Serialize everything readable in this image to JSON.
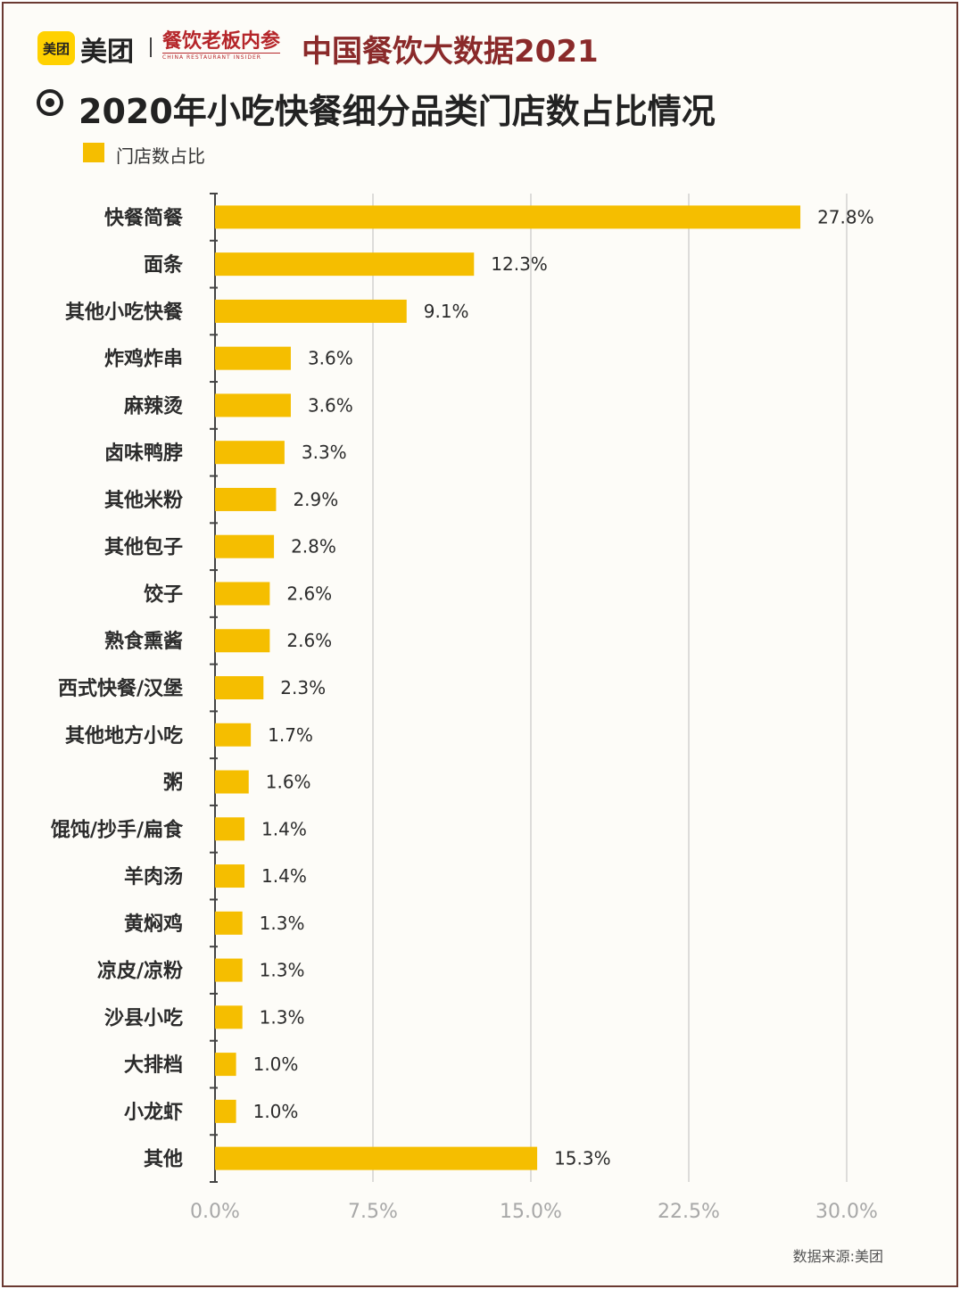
{
  "brand": {
    "logo_text": "美团",
    "name": "美团"
  },
  "partner": {
    "name": "餐饮老板内参",
    "en": "CHINA RESTAURANT INSIDER"
  },
  "headline": "中国餐饮大数据2021",
  "title": "2020年小吃快餐细分品类门店数占比情况",
  "legend": {
    "label": "门店数占比"
  },
  "source": "数据来源:美团",
  "colors": {
    "bar": "#f5be00",
    "grid": "#bdbdbd",
    "axis": "#444444",
    "tick_label": "#a8a8a8"
  },
  "chart_data": {
    "type": "bar",
    "orientation": "horizontal",
    "title": "2020年小吃快餐细分品类门店数占比情况",
    "xlabel": "",
    "ylabel": "",
    "xlim": [
      0,
      30
    ],
    "x_ticks": [
      0,
      7.5,
      15,
      22.5,
      30
    ],
    "x_tick_labels": [
      "0.0%",
      "7.5%",
      "15.0%",
      "22.5%",
      "30.0%"
    ],
    "grid": true,
    "legend": "top-left",
    "categories": [
      "快餐简餐",
      "面条",
      "其他小吃快餐",
      "炸鸡炸串",
      "麻辣烫",
      "卤味鸭脖",
      "其他米粉",
      "其他包子",
      "饺子",
      "熟食熏酱",
      "西式快餐/汉堡",
      "其他地方小吃",
      "粥",
      "馄饨/抄手/扁食",
      "羊肉汤",
      "黄焖鸡",
      "凉皮/凉粉",
      "沙县小吃",
      "大排档",
      "小龙虾",
      "其他"
    ],
    "series": [
      {
        "name": "门店数占比",
        "values": [
          27.8,
          12.3,
          9.1,
          3.6,
          3.6,
          3.3,
          2.9,
          2.8,
          2.6,
          2.6,
          2.3,
          1.7,
          1.6,
          1.4,
          1.4,
          1.3,
          1.3,
          1.3,
          1.0,
          1.0,
          15.3
        ],
        "labels": [
          "27.8%",
          "12.3%",
          "9.1%",
          "3.6%",
          "3.6%",
          "3.3%",
          "2.9%",
          "2.8%",
          "2.6%",
          "2.6%",
          "2.3%",
          "1.7%",
          "1.6%",
          "1.4%",
          "1.4%",
          "1.3%",
          "1.3%",
          "1.3%",
          "1.0%",
          "1.0%",
          "15.3%"
        ]
      }
    ]
  }
}
